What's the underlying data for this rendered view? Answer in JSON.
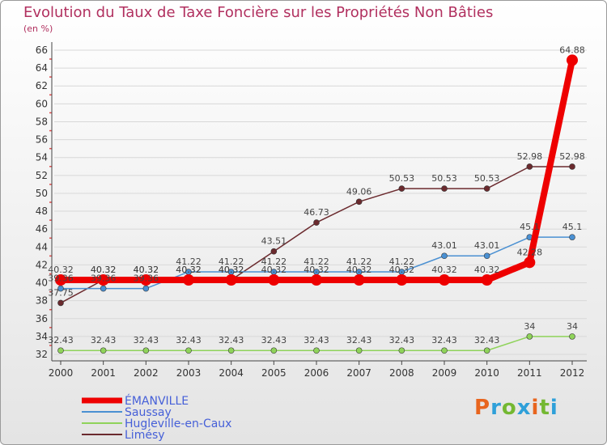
{
  "title": "Evolution du Taux de Taxe Foncière sur les Propriétés Non Bâties",
  "unit": "(en %)",
  "logo": {
    "parts": [
      "P",
      "r",
      "o",
      "x",
      "i",
      "t",
      "i"
    ],
    "colors": [
      "#e8651e",
      "#2fa0d9",
      "#74b832",
      "#2fa0d9",
      "#e8651e",
      "#74b832",
      "#2fa0d9"
    ]
  },
  "chart_data": {
    "type": "line",
    "title": "Evolution du Taux de Taxe Foncière sur les Propriétés Non Bâties",
    "ylabel": "(en %)",
    "x": [
      "2000",
      "2001",
      "2002",
      "2003",
      "2004",
      "2005",
      "2006",
      "2007",
      "2008",
      "2009",
      "2010",
      "2011",
      "2012"
    ],
    "ylim": [
      32,
      66
    ],
    "yticks": [
      32,
      34,
      36,
      38,
      40,
      42,
      44,
      46,
      48,
      50,
      52,
      54,
      56,
      58,
      60,
      62,
      64,
      66
    ],
    "series": [
      {
        "name": "Limésy",
        "color": "#6b2a2e",
        "values": [
          37.75,
          40.32,
          40.32,
          40.32,
          40.32,
          43.51,
          46.73,
          49.06,
          50.53,
          50.53,
          50.53,
          52.98,
          52.98
        ],
        "labels": [
          "37.75",
          "40.32",
          "40.32",
          "40.32",
          "40.32",
          "43.51",
          "46.73",
          "49.06",
          "50.53",
          "50.53",
          "50.53",
          "52.98",
          "52.98"
        ]
      },
      {
        "name": "Saussay",
        "color": "#4a90d2",
        "values": [
          39.36,
          39.36,
          39.36,
          41.22,
          41.22,
          41.22,
          41.22,
          41.22,
          41.22,
          43.01,
          43.01,
          45.1,
          45.1
        ],
        "labels": [
          "39.36",
          "39.36",
          "39.36",
          "41.22",
          "41.22",
          "41.22",
          "41.22",
          "41.22",
          "41.22",
          "43.01",
          "43.01",
          "45.1",
          "45.1"
        ]
      },
      {
        "name": "Hugleville-en-Caux",
        "color": "#8fd35a",
        "values": [
          32.43,
          32.43,
          32.43,
          32.43,
          32.43,
          32.43,
          32.43,
          32.43,
          32.43,
          32.43,
          32.43,
          34,
          34
        ],
        "labels": [
          "32.43",
          "32.43",
          "32.43",
          "32.43",
          "32.43",
          "32.43",
          "32.43",
          "32.43",
          "32.43",
          "32.43",
          "32.43",
          "34",
          "34"
        ]
      },
      {
        "name": "ÉMANVILLE",
        "color": "#ee0000",
        "values": [
          40.32,
          40.32,
          40.32,
          40.32,
          40.32,
          40.32,
          40.32,
          40.32,
          40.32,
          40.32,
          40.32,
          42.28,
          64.88
        ],
        "labels": [
          "40.32",
          "40.32",
          "40.32",
          "40.32",
          "40.32",
          "40.32",
          "40.32",
          "40.32",
          "40.32",
          "40.32",
          "40.32",
          "42.28",
          "64.88"
        ]
      }
    ],
    "legend_order": [
      "ÉMANVILLE",
      "Saussay",
      "Hugleville-en-Caux",
      "Limésy"
    ],
    "legend_position": "bottom-left"
  }
}
